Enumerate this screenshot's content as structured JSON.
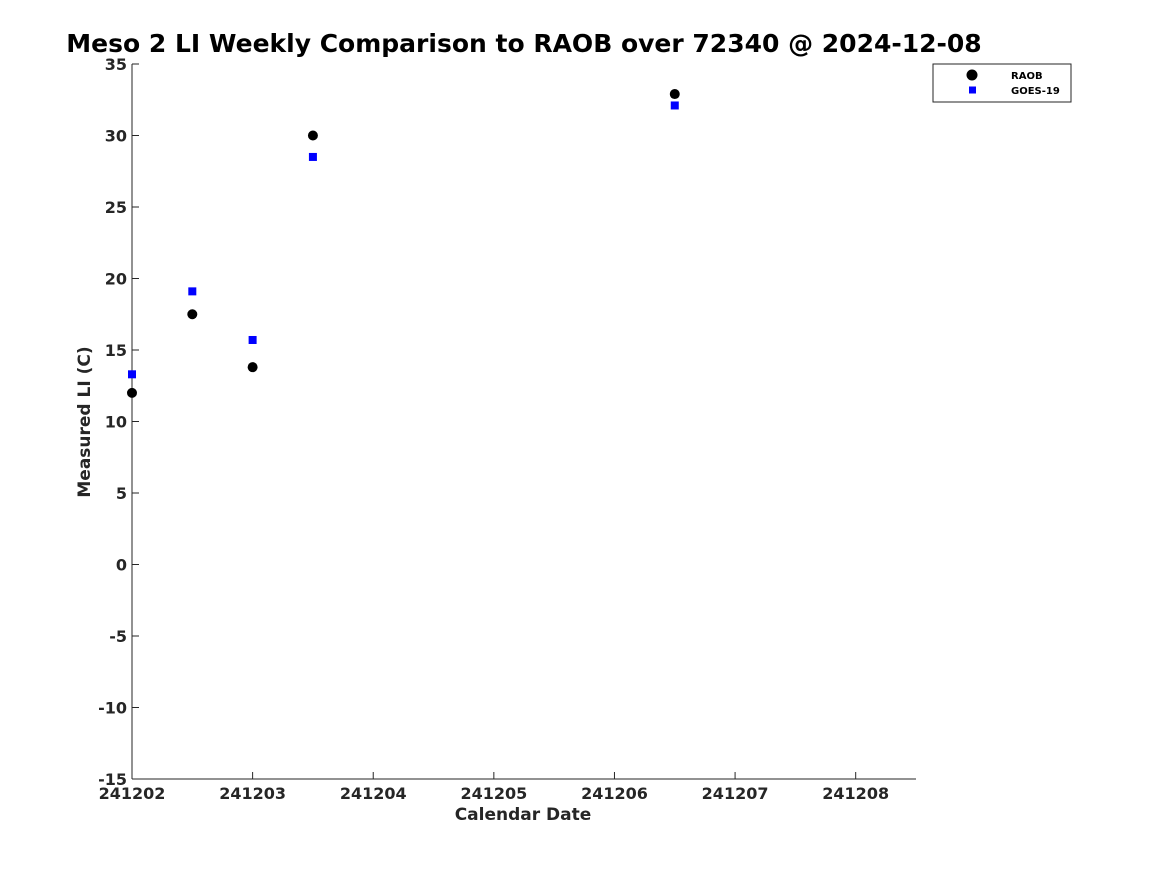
{
  "chart_data": {
    "type": "scatter",
    "title": "Meso 2 LI Weekly Comparison to RAOB over 72340 @ 2024-12-08",
    "xlabel": "Calendar Date",
    "ylabel": "Measured LI (C)",
    "xlim": [
      0,
      6.5
    ],
    "ylim": [
      -15,
      35
    ],
    "xticks": [
      0,
      1,
      2,
      3,
      4,
      5,
      6
    ],
    "xtick_labels": [
      "241202",
      "241203",
      "241204",
      "241205",
      "241206",
      "241207",
      "241208"
    ],
    "yticks": [
      35,
      30,
      25,
      20,
      15,
      10,
      5,
      0,
      -5,
      -10,
      -15
    ],
    "ytick_labels": [
      "35",
      "30",
      "25",
      "20",
      "15",
      "10",
      "5",
      "0",
      "-5",
      "-10",
      "-15"
    ],
    "grid": false,
    "legend_position": "top-right",
    "series": [
      {
        "name": "RAOB",
        "marker": "circle",
        "color": "#000000",
        "points": [
          {
            "x": 0.0,
            "y": 12.0
          },
          {
            "x": 0.5,
            "y": 17.5
          },
          {
            "x": 1.0,
            "y": 13.8
          },
          {
            "x": 1.5,
            "y": 30.0
          },
          {
            "x": 4.5,
            "y": 32.9
          }
        ]
      },
      {
        "name": "GOES-19",
        "marker": "square",
        "color": "#0000ff",
        "points": [
          {
            "x": 0.0,
            "y": 13.3
          },
          {
            "x": 0.5,
            "y": 19.1
          },
          {
            "x": 1.0,
            "y": 15.7
          },
          {
            "x": 1.5,
            "y": 28.5
          },
          {
            "x": 4.5,
            "y": 32.1
          }
        ]
      }
    ]
  }
}
